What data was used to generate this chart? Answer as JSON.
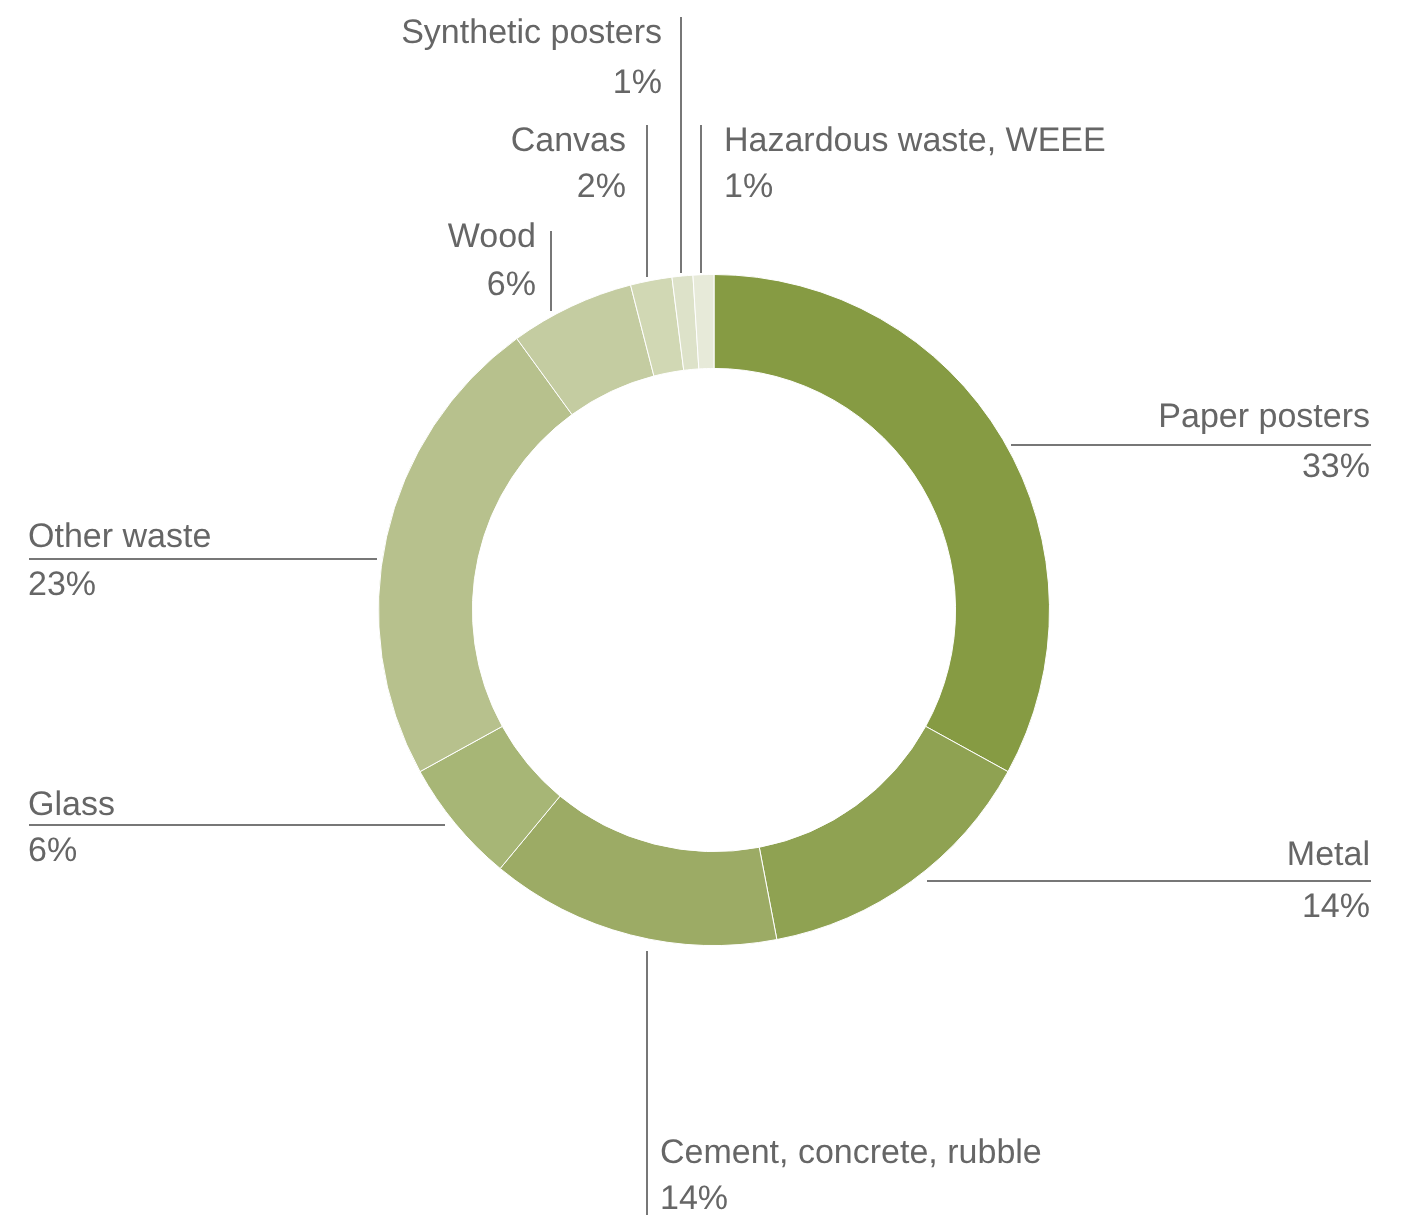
{
  "chart_data": {
    "type": "donut",
    "categories": [
      "Paper posters",
      "Metal",
      "Cement, concrete, rubble",
      "Glass",
      "Other waste",
      "Wood",
      "Canvas",
      "Synthetic posters",
      "Hazardous waste, WEEE"
    ],
    "values": [
      33,
      14,
      14,
      6,
      23,
      6,
      2,
      1,
      1
    ],
    "value_labels": [
      "33%",
      "14%",
      "14%",
      "6%",
      "23%",
      "6%",
      "2%",
      "1%",
      "1%"
    ],
    "colors": [
      "#869b43",
      "#8fa252",
      "#9cab65",
      "#a7b676",
      "#b7c18d",
      "#c4cca1",
      "#d1d8b4",
      "#dde2c9",
      "#e7ead9"
    ],
    "legend": false
  }
}
